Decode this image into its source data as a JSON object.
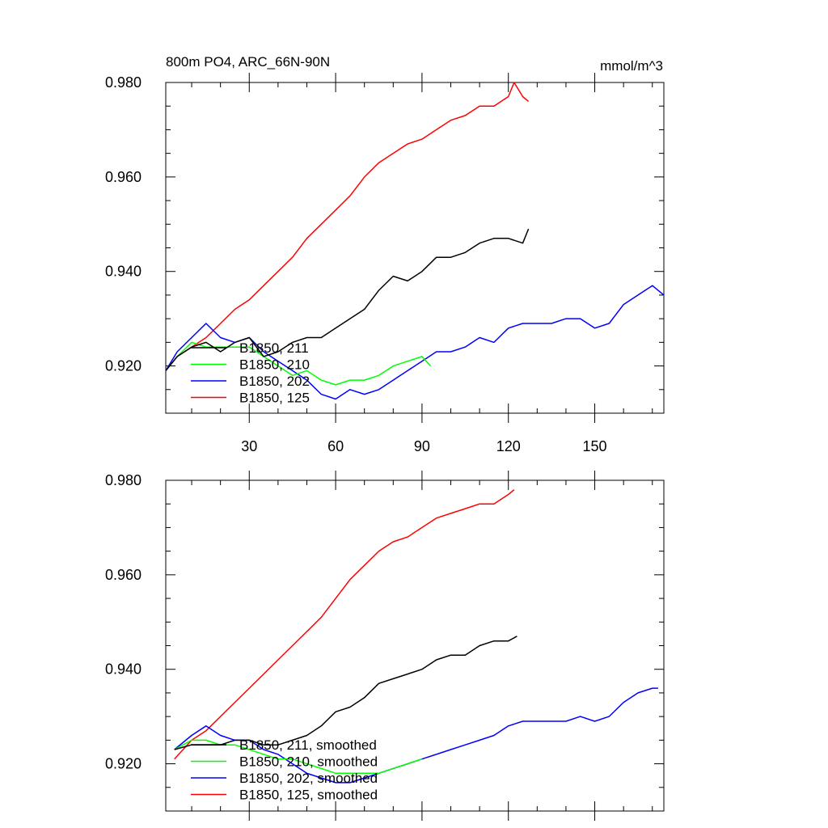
{
  "figure": {
    "title_left": "800m PO4, ARC_66N-90N",
    "title_right": "mmol/m^3"
  },
  "chart_data": [
    {
      "type": "line",
      "panel": "top",
      "xlim": [
        1,
        174
      ],
      "ylim": [
        0.91,
        0.98
      ],
      "x_ticks": [
        30,
        60,
        90,
        120,
        150
      ],
      "x_tick_labels": [
        "30",
        "60",
        "90",
        "120",
        "150"
      ],
      "y_ticks": [
        0.92,
        0.94,
        0.96,
        0.98
      ],
      "y_tick_labels": [
        "0.920",
        "0.940",
        "0.960",
        "0.980"
      ],
      "grid": false,
      "legend_position": "bottom-left",
      "series": [
        {
          "name": "B1850, 211",
          "color": "#000000",
          "x": [
            1,
            5,
            10,
            15,
            20,
            25,
            30,
            35,
            40,
            45,
            50,
            55,
            60,
            65,
            70,
            75,
            80,
            85,
            90,
            95,
            100,
            105,
            110,
            115,
            120,
            125,
            127
          ],
          "y": [
            0.919,
            0.922,
            0.924,
            0.925,
            0.923,
            0.925,
            0.926,
            0.922,
            0.923,
            0.925,
            0.926,
            0.926,
            0.928,
            0.93,
            0.932,
            0.936,
            0.939,
            0.938,
            0.94,
            0.943,
            0.943,
            0.944,
            0.946,
            0.947,
            0.947,
            0.946,
            0.949
          ]
        },
        {
          "name": "B1850, 210",
          "color": "#00ff00",
          "x": [
            1,
            5,
            10,
            15,
            20,
            25,
            30,
            35,
            40,
            45,
            50,
            55,
            60,
            65,
            70,
            75,
            80,
            85,
            90,
            93
          ],
          "y": [
            0.919,
            0.922,
            0.925,
            0.924,
            0.924,
            0.924,
            0.924,
            0.922,
            0.92,
            0.918,
            0.919,
            0.917,
            0.916,
            0.917,
            0.917,
            0.918,
            0.92,
            0.921,
            0.922,
            0.92
          ]
        },
        {
          "name": "B1850, 202",
          "color": "#0000ff",
          "x": [
            1,
            5,
            10,
            15,
            20,
            25,
            30,
            35,
            40,
            45,
            50,
            55,
            60,
            65,
            70,
            75,
            80,
            85,
            90,
            95,
            100,
            105,
            110,
            115,
            120,
            125,
            130,
            135,
            140,
            145,
            150,
            155,
            160,
            165,
            170,
            174
          ],
          "y": [
            0.919,
            0.923,
            0.926,
            0.929,
            0.926,
            0.925,
            0.926,
            0.923,
            0.921,
            0.919,
            0.917,
            0.914,
            0.913,
            0.915,
            0.914,
            0.915,
            0.917,
            0.919,
            0.921,
            0.923,
            0.923,
            0.924,
            0.926,
            0.925,
            0.928,
            0.929,
            0.929,
            0.929,
            0.93,
            0.93,
            0.928,
            0.929,
            0.933,
            0.935,
            0.937,
            0.935
          ]
        },
        {
          "name": "B1850, 125",
          "color": "#ff0000",
          "x": [
            1,
            5,
            10,
            15,
            20,
            25,
            30,
            35,
            40,
            45,
            50,
            55,
            60,
            65,
            70,
            75,
            80,
            85,
            90,
            95,
            100,
            105,
            110,
            115,
            120,
            122,
            125,
            127
          ],
          "y": [
            0.919,
            0.922,
            0.924,
            0.926,
            0.929,
            0.932,
            0.934,
            0.937,
            0.94,
            0.943,
            0.947,
            0.95,
            0.953,
            0.956,
            0.96,
            0.963,
            0.965,
            0.967,
            0.968,
            0.97,
            0.972,
            0.973,
            0.975,
            0.975,
            0.977,
            0.98,
            0.977,
            0.976
          ]
        }
      ]
    },
    {
      "type": "line",
      "panel": "bottom",
      "xlim": [
        1,
        174
      ],
      "ylim": [
        0.91,
        0.98
      ],
      "x_ticks": [
        30,
        60,
        90,
        120,
        150
      ],
      "x_tick_labels": [],
      "y_ticks": [
        0.92,
        0.94,
        0.96,
        0.98
      ],
      "y_tick_labels": [
        "0.920",
        "0.940",
        "0.960",
        "0.980"
      ],
      "grid": false,
      "legend_position": "bottom-left",
      "series": [
        {
          "name": "B1850, 211, smoothed",
          "color": "#000000",
          "x": [
            4,
            10,
            15,
            20,
            25,
            30,
            35,
            40,
            45,
            50,
            55,
            60,
            65,
            70,
            75,
            80,
            85,
            90,
            95,
            100,
            105,
            110,
            115,
            120,
            123
          ],
          "y": [
            0.923,
            0.924,
            0.924,
            0.924,
            0.925,
            0.925,
            0.924,
            0.924,
            0.925,
            0.926,
            0.928,
            0.931,
            0.932,
            0.934,
            0.937,
            0.938,
            0.939,
            0.94,
            0.942,
            0.943,
            0.943,
            0.945,
            0.946,
            0.946,
            0.947
          ]
        },
        {
          "name": "B1850, 210, smoothed",
          "color": "#00ff00",
          "x": [
            4,
            10,
            15,
            20,
            25,
            30,
            35,
            40,
            45,
            50,
            55,
            60,
            65,
            70,
            75,
            80,
            85,
            90
          ],
          "y": [
            0.923,
            0.925,
            0.925,
            0.924,
            0.924,
            0.923,
            0.922,
            0.921,
            0.921,
            0.92,
            0.919,
            0.918,
            0.918,
            0.918,
            0.918,
            0.919,
            0.92,
            0.921
          ]
        },
        {
          "name": "B1850, 202, smoothed",
          "color": "#0000ff",
          "x": [
            4,
            10,
            15,
            20,
            25,
            30,
            35,
            40,
            45,
            50,
            55,
            60,
            65,
            70,
            75,
            80,
            85,
            90,
            95,
            100,
            105,
            110,
            115,
            120,
            125,
            130,
            135,
            140,
            145,
            150,
            155,
            160,
            165,
            170,
            172
          ],
          "y": [
            0.923,
            0.926,
            0.928,
            0.926,
            0.925,
            0.925,
            0.923,
            0.922,
            0.92,
            0.918,
            0.917,
            0.916,
            0.916,
            0.917,
            0.918,
            0.919,
            0.92,
            0.921,
            0.922,
            0.923,
            0.924,
            0.925,
            0.926,
            0.928,
            0.929,
            0.929,
            0.929,
            0.929,
            0.93,
            0.929,
            0.93,
            0.933,
            0.935,
            0.936,
            0.936
          ]
        },
        {
          "name": "B1850, 125, smoothed",
          "color": "#ff0000",
          "x": [
            4,
            10,
            15,
            20,
            25,
            30,
            35,
            40,
            45,
            50,
            55,
            60,
            65,
            70,
            75,
            80,
            85,
            90,
            95,
            100,
            105,
            110,
            115,
            120,
            122
          ],
          "y": [
            0.921,
            0.925,
            0.927,
            0.93,
            0.933,
            0.936,
            0.939,
            0.942,
            0.945,
            0.948,
            0.951,
            0.955,
            0.959,
            0.962,
            0.965,
            0.967,
            0.968,
            0.97,
            0.972,
            0.973,
            0.974,
            0.975,
            0.975,
            0.977,
            0.978
          ]
        }
      ]
    }
  ]
}
